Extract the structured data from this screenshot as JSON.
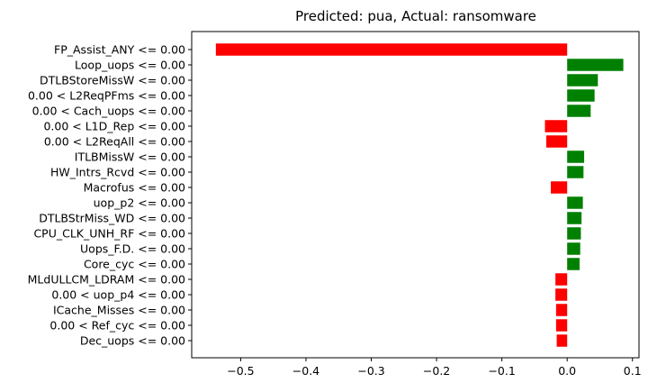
{
  "chart_data": {
    "type": "bar",
    "orientation": "horizontal",
    "title": "Predicted: pua, Actual: ransomware",
    "xlabel": "",
    "ylabel": "",
    "xlim": [
      -0.575,
      0.11
    ],
    "xticks": [
      -0.5,
      -0.4,
      -0.3,
      -0.2,
      -0.1,
      0.0,
      0.1
    ],
    "xtick_labels": [
      "−0.5",
      "−0.4",
      "−0.3",
      "−0.2",
      "−0.1",
      "0.0",
      "0.1"
    ],
    "grid": false,
    "colors": {
      "positive": "#008000",
      "negative": "#ff0000"
    },
    "categories": [
      "FP_Assist_ANY <= 0.00",
      "Loop_uops <= 0.00",
      "DTLBStoreMissW <= 0.00",
      "0.00 < L2ReqPFms <= 0.00",
      "0.00 < Cach_uops <= 0.00",
      "0.00 < L1D_Rep <= 0.00",
      "0.00 < L2ReqAll <= 0.00",
      "ITLBMissW <= 0.00",
      "HW_Intrs_Rcvd <= 0.00",
      "Macrofus <= 0.00",
      "uop_p2 <= 0.00",
      "DTLBStrMiss_WD <= 0.00",
      "CPU_CLK_UNH_RF <= 0.00",
      "Uops_F.D. <= 0.00",
      "Core_cyc <= 0.00",
      "MLdULLCM_LDRAM <= 0.00",
      "0.00 < uop_p4 <= 0.00",
      "ICache_Misses <= 0.00",
      "0.00 < Ref_cyc <= 0.00",
      "Dec_uops <= 0.00"
    ],
    "values": [
      -0.538,
      0.086,
      0.047,
      0.042,
      0.036,
      -0.034,
      -0.032,
      0.026,
      0.025,
      -0.025,
      0.024,
      0.022,
      0.021,
      0.02,
      0.019,
      -0.018,
      -0.018,
      -0.017,
      -0.017,
      -0.016
    ]
  }
}
